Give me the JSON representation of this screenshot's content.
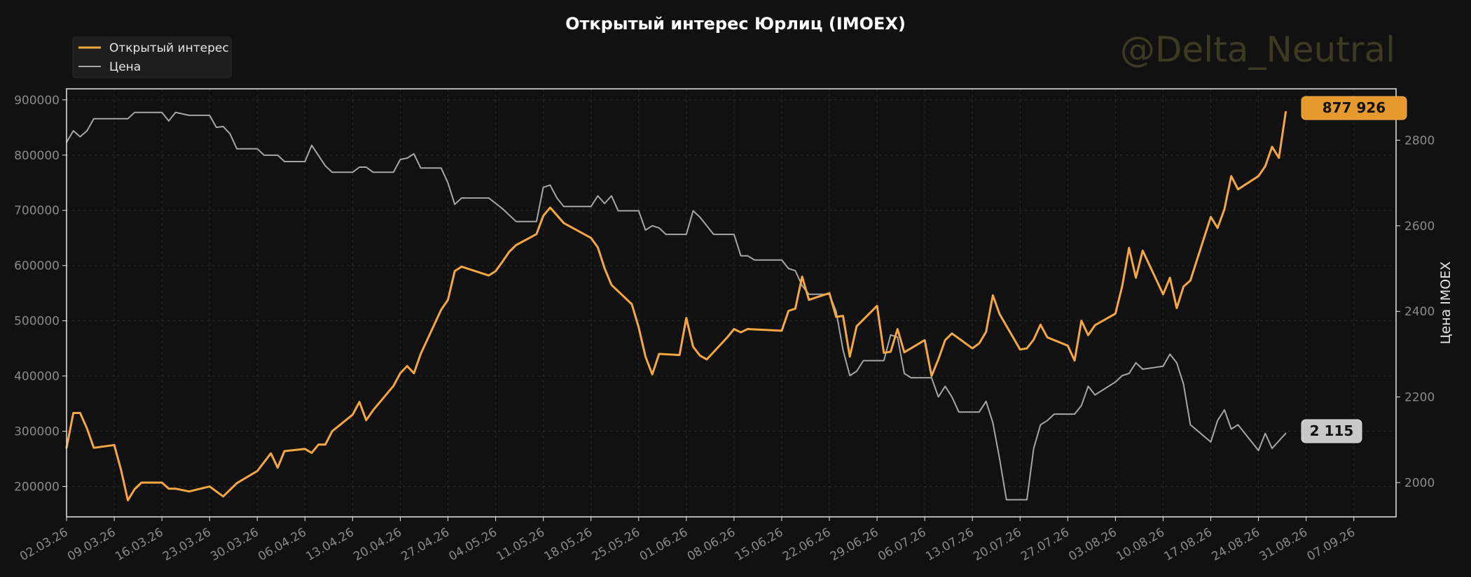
{
  "chart_data": {
    "type": "line",
    "title": "Открытый интерес Юрлиц (IMOEX)",
    "watermark": "@Delta_Neutral",
    "ylabel_right": "Цена IMOEX",
    "legend": {
      "placement": "top-left",
      "entries": [
        "Открытый интерес",
        "Цена"
      ]
    },
    "grid": true,
    "x_tick_labels": [
      "02.03.26",
      "09.03.26",
      "16.03.26",
      "23.03.26",
      "30.03.26",
      "06.04.26",
      "13.04.26",
      "20.04.26",
      "27.04.26",
      "04.05.26",
      "11.05.26",
      "18.05.26",
      "25.05.26",
      "01.06.26",
      "08.06.26",
      "15.06.26",
      "22.06.26",
      "29.06.26",
      "06.07.26",
      "13.07.26",
      "20.07.26",
      "27.07.26",
      "03.08.26",
      "10.08.26",
      "17.08.26",
      "24.08.26",
      "31.08.26",
      "07.09.26"
    ],
    "x_range": [
      0,
      195.2
    ],
    "y_left": {
      "ticks": [
        200000,
        300000,
        400000,
        500000,
        600000,
        700000,
        800000,
        900000
      ],
      "range": [
        145000,
        920000
      ]
    },
    "y_right": {
      "ticks": [
        2000,
        2200,
        2400,
        2600,
        2800
      ],
      "range": [
        1920,
        2920
      ]
    },
    "series": [
      {
        "name": "Открытый интерес",
        "axis": "left",
        "color": "#f4a742",
        "last_label": "877 926",
        "points": [
          [
            0,
            270000
          ],
          [
            1,
            333000
          ],
          [
            2,
            333000
          ],
          [
            3,
            305000
          ],
          [
            4,
            270000
          ],
          [
            7,
            275000
          ],
          [
            8,
            230000
          ],
          [
            9,
            175000
          ],
          [
            10,
            195000
          ],
          [
            11,
            207000
          ],
          [
            14,
            207000
          ],
          [
            15,
            196000
          ],
          [
            16,
            196000
          ],
          [
            18,
            191000
          ],
          [
            21,
            200000
          ],
          [
            23,
            182000
          ],
          [
            25,
            206000
          ],
          [
            28,
            228000
          ],
          [
            30,
            260000
          ],
          [
            31,
            234000
          ],
          [
            32,
            264000
          ],
          [
            35,
            268000
          ],
          [
            36,
            261000
          ],
          [
            37,
            276000
          ],
          [
            38,
            276000
          ],
          [
            39,
            300000
          ],
          [
            42,
            330000
          ],
          [
            43,
            353000
          ],
          [
            44,
            320000
          ],
          [
            45,
            338000
          ],
          [
            48,
            382000
          ],
          [
            49,
            405000
          ],
          [
            50,
            418000
          ],
          [
            51,
            405000
          ],
          [
            52,
            440000
          ],
          [
            55,
            520000
          ],
          [
            56,
            538000
          ],
          [
            57,
            590000
          ],
          [
            58,
            598000
          ],
          [
            62,
            582000
          ],
          [
            63,
            590000
          ],
          [
            64,
            607000
          ],
          [
            65,
            625000
          ],
          [
            66,
            637000
          ],
          [
            69,
            657000
          ],
          [
            70,
            690000
          ],
          [
            71,
            705000
          ],
          [
            73,
            677000
          ],
          [
            77,
            650000
          ],
          [
            78,
            633000
          ],
          [
            79,
            595000
          ],
          [
            80,
            565000
          ],
          [
            83,
            530000
          ],
          [
            84,
            488000
          ],
          [
            85,
            435000
          ],
          [
            86,
            403000
          ],
          [
            87,
            440000
          ],
          [
            90,
            438000
          ],
          [
            91,
            505000
          ],
          [
            92,
            453000
          ],
          [
            93,
            437000
          ],
          [
            94,
            430000
          ],
          [
            97,
            470000
          ],
          [
            98,
            485000
          ],
          [
            99,
            479000
          ],
          [
            100,
            485000
          ],
          [
            105,
            482000
          ],
          [
            106,
            518000
          ],
          [
            107,
            522000
          ],
          [
            108,
            580000
          ],
          [
            109,
            538000
          ],
          [
            112,
            550000
          ],
          [
            113,
            507000
          ],
          [
            114,
            509000
          ],
          [
            115,
            435000
          ],
          [
            116,
            490000
          ],
          [
            119,
            527000
          ],
          [
            120,
            442000
          ],
          [
            121,
            444000
          ],
          [
            122,
            485000
          ],
          [
            123,
            443000
          ],
          [
            126,
            465000
          ],
          [
            127,
            400000
          ],
          [
            128,
            430000
          ],
          [
            129,
            465000
          ],
          [
            130,
            477000
          ],
          [
            133,
            450000
          ],
          [
            134,
            459000
          ],
          [
            135,
            480000
          ],
          [
            136,
            546000
          ],
          [
            137,
            512000
          ],
          [
            140,
            448000
          ],
          [
            141,
            450000
          ],
          [
            142,
            466000
          ],
          [
            143,
            493000
          ],
          [
            144,
            470000
          ],
          [
            147,
            455000
          ],
          [
            148,
            428000
          ],
          [
            149,
            500000
          ],
          [
            150,
            474000
          ],
          [
            151,
            492000
          ],
          [
            154,
            513000
          ],
          [
            155,
            563000
          ],
          [
            156,
            632000
          ],
          [
            157,
            578000
          ],
          [
            158,
            627000
          ],
          [
            161,
            548000
          ],
          [
            162,
            578000
          ],
          [
            163,
            523000
          ],
          [
            164,
            562000
          ],
          [
            165,
            573000
          ],
          [
            168,
            688000
          ],
          [
            169,
            668000
          ],
          [
            170,
            702000
          ],
          [
            171,
            762000
          ],
          [
            172,
            738000
          ],
          [
            175,
            762000
          ],
          [
            176,
            780000
          ],
          [
            177,
            815000
          ],
          [
            178,
            795000
          ],
          [
            179,
            877926
          ]
        ]
      },
      {
        "name": "Цена",
        "axis": "right",
        "color": "#a6a6a6",
        "last_label": "2 115",
        "points": [
          [
            0,
            2795
          ],
          [
            1,
            2822
          ],
          [
            2,
            2808
          ],
          [
            3,
            2822
          ],
          [
            4,
            2850
          ],
          [
            8,
            2850
          ],
          [
            9,
            2850
          ],
          [
            10,
            2865
          ],
          [
            14,
            2865
          ],
          [
            15,
            2845
          ],
          [
            16,
            2865
          ],
          [
            18,
            2858
          ],
          [
            21,
            2858
          ],
          [
            22,
            2830
          ],
          [
            23,
            2832
          ],
          [
            24,
            2815
          ],
          [
            25,
            2780
          ],
          [
            28,
            2780
          ],
          [
            29,
            2765
          ],
          [
            31,
            2765
          ],
          [
            32,
            2750
          ],
          [
            35,
            2750
          ],
          [
            36,
            2788
          ],
          [
            38,
            2740
          ],
          [
            39,
            2725
          ],
          [
            42,
            2725
          ],
          [
            43,
            2737
          ],
          [
            44,
            2737
          ],
          [
            45,
            2725
          ],
          [
            48,
            2725
          ],
          [
            49,
            2755
          ],
          [
            50,
            2758
          ],
          [
            51,
            2768
          ],
          [
            52,
            2735
          ],
          [
            55,
            2735
          ],
          [
            56,
            2700
          ],
          [
            57,
            2650
          ],
          [
            58,
            2665
          ],
          [
            62,
            2665
          ],
          [
            64,
            2640
          ],
          [
            66,
            2610
          ],
          [
            69,
            2610
          ],
          [
            70,
            2690
          ],
          [
            71,
            2695
          ],
          [
            72,
            2665
          ],
          [
            73,
            2645
          ],
          [
            77,
            2645
          ],
          [
            78,
            2670
          ],
          [
            79,
            2652
          ],
          [
            80,
            2670
          ],
          [
            81,
            2635
          ],
          [
            84,
            2635
          ],
          [
            85,
            2590
          ],
          [
            86,
            2600
          ],
          [
            87,
            2595
          ],
          [
            88,
            2580
          ],
          [
            91,
            2580
          ],
          [
            92,
            2635
          ],
          [
            93,
            2620
          ],
          [
            94,
            2600
          ],
          [
            95,
            2580
          ],
          [
            98,
            2580
          ],
          [
            99,
            2530
          ],
          [
            100,
            2530
          ],
          [
            101,
            2520
          ],
          [
            105,
            2520
          ],
          [
            106,
            2500
          ],
          [
            107,
            2495
          ],
          [
            108,
            2460
          ],
          [
            109,
            2440
          ],
          [
            112,
            2440
          ],
          [
            113,
            2400
          ],
          [
            114,
            2310
          ],
          [
            115,
            2250
          ],
          [
            116,
            2260
          ],
          [
            117,
            2285
          ],
          [
            120,
            2285
          ],
          [
            121,
            2345
          ],
          [
            122,
            2340
          ],
          [
            123,
            2255
          ],
          [
            124,
            2245
          ],
          [
            127,
            2245
          ],
          [
            128,
            2200
          ],
          [
            129,
            2225
          ],
          [
            130,
            2200
          ],
          [
            131,
            2165
          ],
          [
            134,
            2165
          ],
          [
            135,
            2190
          ],
          [
            136,
            2140
          ],
          [
            137,
            2055
          ],
          [
            138,
            1960
          ],
          [
            141,
            1960
          ],
          [
            142,
            2080
          ],
          [
            143,
            2135
          ],
          [
            144,
            2145
          ],
          [
            145,
            2160
          ],
          [
            148,
            2160
          ],
          [
            149,
            2180
          ],
          [
            150,
            2225
          ],
          [
            151,
            2205
          ],
          [
            154,
            2235
          ],
          [
            155,
            2250
          ],
          [
            156,
            2255
          ],
          [
            157,
            2280
          ],
          [
            158,
            2265
          ],
          [
            161,
            2272
          ],
          [
            162,
            2300
          ],
          [
            163,
            2280
          ],
          [
            164,
            2230
          ],
          [
            165,
            2135
          ],
          [
            168,
            2095
          ],
          [
            169,
            2145
          ],
          [
            170,
            2170
          ],
          [
            171,
            2125
          ],
          [
            172,
            2135
          ],
          [
            175,
            2075
          ],
          [
            176,
            2115
          ],
          [
            177,
            2080
          ],
          [
            179,
            2115
          ]
        ]
      }
    ]
  }
}
